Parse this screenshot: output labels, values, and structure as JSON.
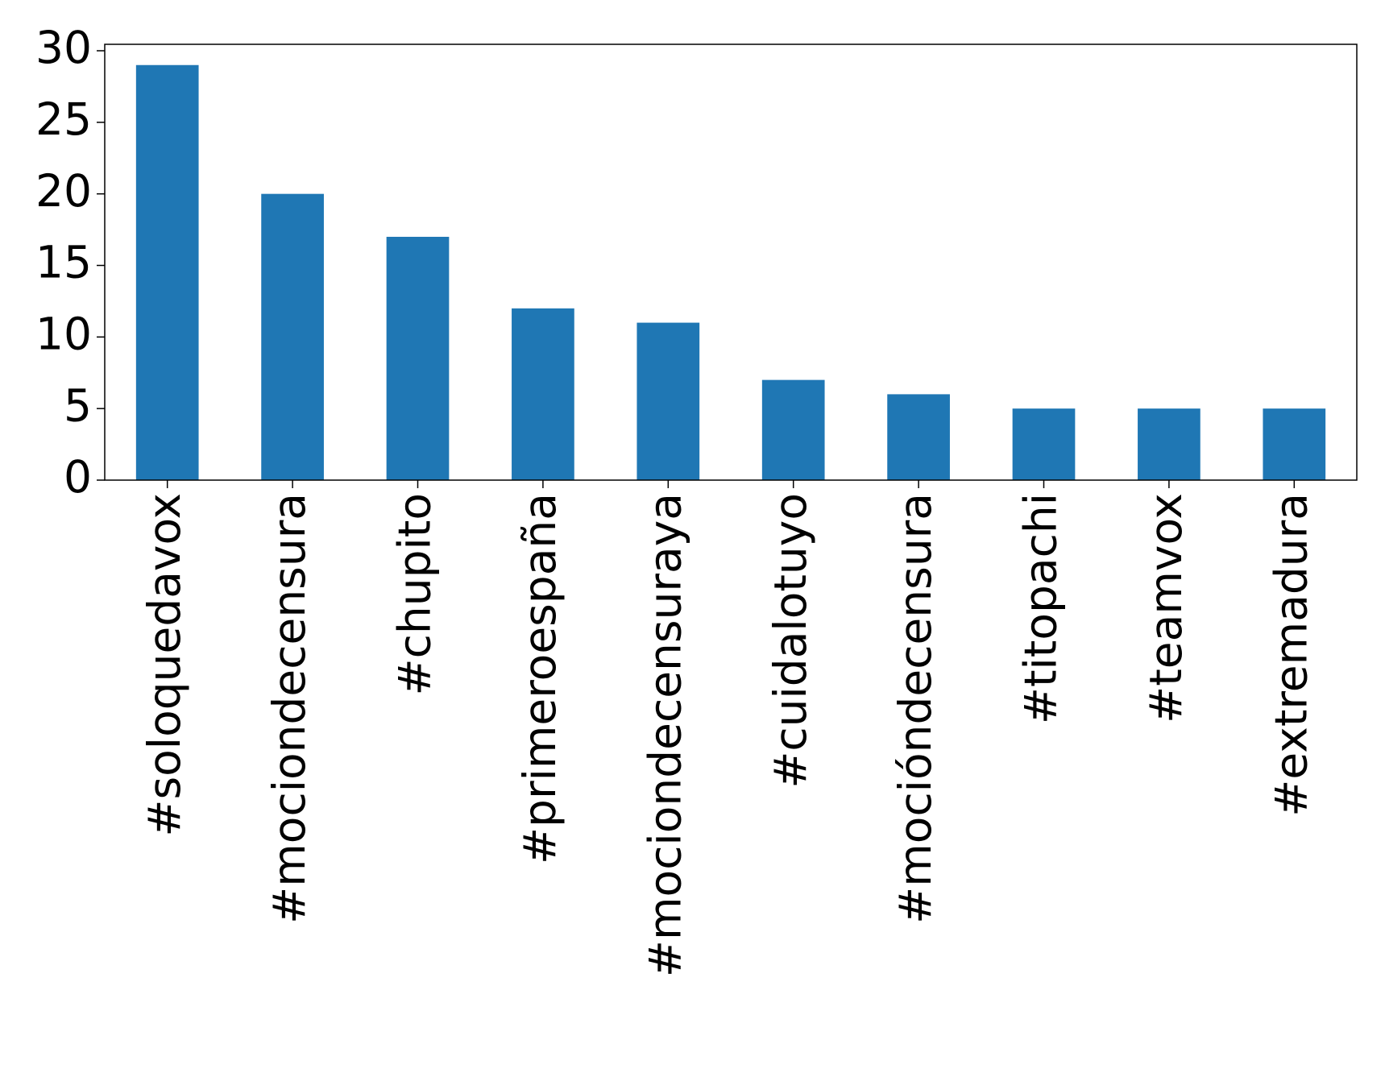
{
  "chart_data": {
    "type": "bar",
    "categories": [
      "#soloquedavox",
      "#mociondecensura",
      "#chupito",
      "#primeroespaña",
      "#mociondecensuraya",
      "#cuidalotuyo",
      "#mocióndecensura",
      "#titopachi",
      "#teamvox",
      "#extremadura"
    ],
    "values": [
      29,
      20,
      17,
      12,
      11,
      7,
      6,
      5,
      5,
      5
    ],
    "color": "#1f77b4",
    "ylim": [
      0,
      30.45
    ],
    "yticks": [
      0,
      5,
      10,
      15,
      20,
      25,
      30
    ],
    "grid": false
  }
}
